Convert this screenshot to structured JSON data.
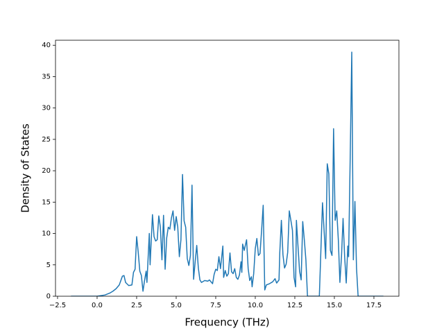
{
  "chart_data": {
    "type": "line",
    "xlabel": "Frequency (THz)",
    "ylabel": "Density of States",
    "xlim": [
      -2.63,
      19.08
    ],
    "ylim": [
      0,
      40.8
    ],
    "xticks": [
      {
        "value": -2.5,
        "label": "−2.5"
      },
      {
        "value": 0,
        "label": "0.0"
      },
      {
        "value": 2.5,
        "label": "2.5"
      },
      {
        "value": 5,
        "label": "5.0"
      },
      {
        "value": 7.5,
        "label": "7.5"
      },
      {
        "value": 10,
        "label": "10.0"
      },
      {
        "value": 12.5,
        "label": "12.5"
      },
      {
        "value": 15,
        "label": "15.0"
      },
      {
        "value": 17.5,
        "label": "17.5"
      }
    ],
    "yticks": [
      0,
      5,
      10,
      15,
      20,
      25,
      30,
      35,
      40
    ],
    "color": "#1f77b4",
    "x": [
      -1.65,
      0,
      0.5,
      0.8,
      1.0,
      1.2,
      1.4,
      1.6,
      1.7,
      1.8,
      2.0,
      2.2,
      2.3,
      2.4,
      2.5,
      2.6,
      2.7,
      2.8,
      2.9,
      3.0,
      3.1,
      3.15,
      3.3,
      3.35,
      3.5,
      3.6,
      3.7,
      3.8,
      3.9,
      4.0,
      4.1,
      4.2,
      4.3,
      4.4,
      4.5,
      4.6,
      4.7,
      4.8,
      4.9,
      5.0,
      5.1,
      5.2,
      5.3,
      5.4,
      5.5,
      5.6,
      5.7,
      5.8,
      5.9,
      6.0,
      6.1,
      6.2,
      6.3,
      6.4,
      6.5,
      6.6,
      6.8,
      7.0,
      7.1,
      7.3,
      7.4,
      7.5,
      7.6,
      7.7,
      7.8,
      7.95,
      8.0,
      8.1,
      8.2,
      8.3,
      8.4,
      8.5,
      8.6,
      8.7,
      8.8,
      8.9,
      9.0,
      9.1,
      9.15,
      9.2,
      9.3,
      9.45,
      9.55,
      9.65,
      9.75,
      9.8,
      9.9,
      10.0,
      10.1,
      10.2,
      10.3,
      10.4,
      10.5,
      10.6,
      10.7,
      10.9,
      11.1,
      11.25,
      11.35,
      11.5,
      11.55,
      11.65,
      11.75,
      11.85,
      11.95,
      12.05,
      12.15,
      12.25,
      12.35,
      12.45,
      12.55,
      12.6,
      12.7,
      12.8,
      12.9,
      13.0,
      13.1,
      13.2,
      13.3,
      14.05,
      14.25,
      14.4,
      14.45,
      14.55,
      14.65,
      14.75,
      14.85,
      14.95,
      15.05,
      15.15,
      15.25,
      15.35,
      15.45,
      15.55,
      15.65,
      15.75,
      15.85,
      15.9,
      16.0,
      16.1,
      16.2,
      16.3,
      16.4,
      16.5,
      18.1
    ],
    "values": [
      0,
      0,
      0.2,
      0.5,
      0.8,
      1.2,
      1.8,
      3.2,
      3.3,
      2.2,
      1.7,
      1.8,
      3.8,
      4.3,
      9.5,
      7,
      4,
      3.3,
      0.8,
      2.5,
      4,
      2.2,
      10,
      5,
      13,
      9.5,
      8.8,
      9,
      12.8,
      11,
      5.8,
      12.9,
      4.3,
      9.3,
      11,
      10.7,
      12.5,
      13.6,
      10.5,
      12.7,
      11,
      6.3,
      9,
      19.4,
      12,
      11,
      6,
      4.9,
      6.5,
      17.7,
      2.7,
      5.5,
      8.1,
      4.5,
      2.6,
      2.2,
      2.5,
      2.4,
      2.6,
      2.0,
      3.5,
      4.3,
      4.1,
      6.3,
      4.4,
      8,
      3,
      4.1,
      3.2,
      3.6,
      6.9,
      3.9,
      3.6,
      4.4,
      3,
      2.7,
      3.4,
      5.5,
      3.8,
      8.3,
      7.3,
      9,
      4.4,
      2.5,
      3.1,
      1.5,
      3.6,
      7.6,
      9.2,
      6.5,
      6.8,
      10.5,
      14.5,
      1,
      1.8,
      2,
      2.3,
      2.8,
      2.1,
      2.6,
      7,
      12.1,
      6.6,
      4.5,
      5.1,
      7,
      13.6,
      12.1,
      10.5,
      3,
      1.5,
      12.1,
      8,
      4,
      2.6,
      11.9,
      9,
      5.8,
      0,
      0,
      14.9,
      8.3,
      6,
      21.1,
      19.5,
      7.3,
      6.5,
      26.7,
      12.1,
      13.6,
      9,
      2.2,
      6.3,
      12.4,
      6.3,
      2.1,
      8,
      6.3,
      22,
      38.9,
      5.8,
      15.1,
      4.5,
      0,
      0
    ]
  }
}
